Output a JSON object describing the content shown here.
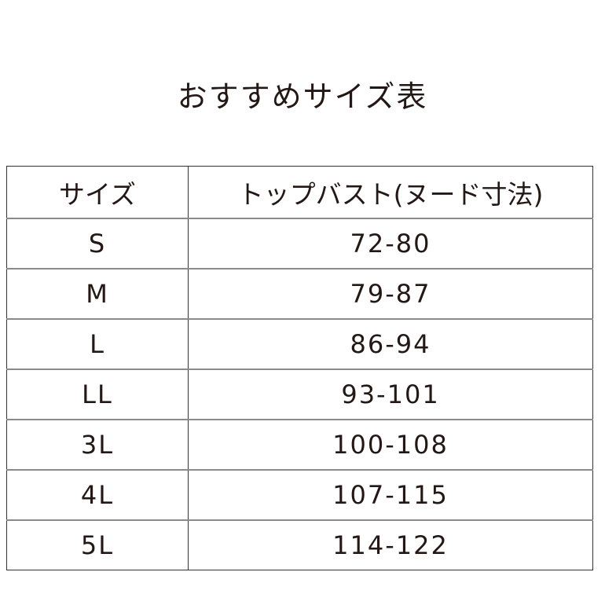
{
  "title": "おすすめサイズ表",
  "table": {
    "headers": [
      "サイズ",
      "トップバスト(ヌード寸法)"
    ],
    "rows": [
      [
        "S",
        "72-80"
      ],
      [
        "M",
        "79-87"
      ],
      [
        "L",
        "86-94"
      ],
      [
        "LL",
        "93-101"
      ],
      [
        "3L",
        "100-108"
      ],
      [
        "4L",
        "107-115"
      ],
      [
        "5L",
        "114-122"
      ]
    ]
  }
}
